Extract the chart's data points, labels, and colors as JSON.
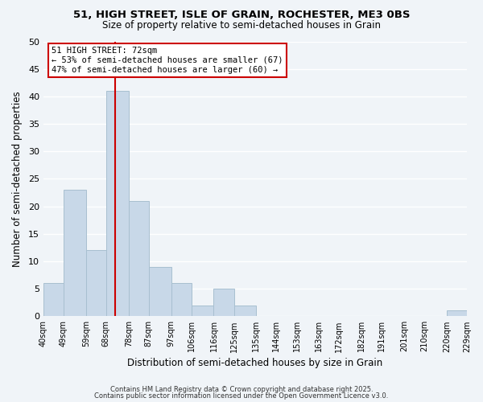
{
  "title_line1": "51, HIGH STREET, ISLE OF GRAIN, ROCHESTER, ME3 0BS",
  "title_line2": "Size of property relative to semi-detached houses in Grain",
  "xlabel": "Distribution of semi-detached houses by size in Grain",
  "ylabel": "Number of semi-detached properties",
  "bar_color": "#c8d8e8",
  "bar_edge_color": "#a8bfd0",
  "bin_edges": [
    40,
    49,
    59,
    68,
    78,
    87,
    97,
    106,
    116,
    125,
    135,
    144,
    153,
    163,
    172,
    182,
    191,
    201,
    210,
    220,
    229
  ],
  "bin_labels": [
    "40sqm",
    "49sqm",
    "59sqm",
    "68sqm",
    "78sqm",
    "87sqm",
    "97sqm",
    "106sqm",
    "116sqm",
    "125sqm",
    "135sqm",
    "144sqm",
    "153sqm",
    "163sqm",
    "172sqm",
    "182sqm",
    "191sqm",
    "201sqm",
    "210sqm",
    "220sqm",
    "229sqm"
  ],
  "counts": [
    6,
    23,
    12,
    41,
    21,
    9,
    6,
    2,
    5,
    2,
    0,
    0,
    0,
    0,
    0,
    0,
    0,
    0,
    0,
    1
  ],
  "ylim": [
    0,
    50
  ],
  "yticks": [
    0,
    5,
    10,
    15,
    20,
    25,
    30,
    35,
    40,
    45,
    50
  ],
  "vline_x": 72,
  "vline_color": "#cc0000",
  "annotation_title": "51 HIGH STREET: 72sqm",
  "annotation_line1": "← 53% of semi-detached houses are smaller (67)",
  "annotation_line2": "47% of semi-detached houses are larger (60) →",
  "annotation_box_color": "#ffffff",
  "annotation_box_edge": "#cc0000",
  "footer_line1": "Contains HM Land Registry data © Crown copyright and database right 2025.",
  "footer_line2": "Contains public sector information licensed under the Open Government Licence v3.0.",
  "background_color": "#f0f4f8",
  "grid_color": "#ffffff"
}
